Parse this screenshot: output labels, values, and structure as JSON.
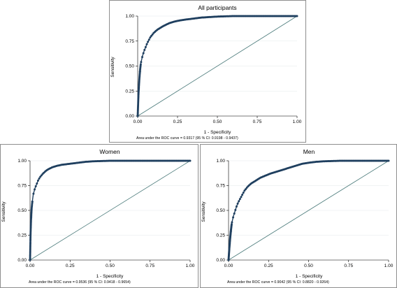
{
  "charts": [
    {
      "id": "all",
      "title": "All participants",
      "xlabel": "1 - Specificity",
      "ylabel": "Sensitivity",
      "note": "Area under the ROC curve = 0.9317 (95 % CI: 0.9198 - 0.9437)"
    },
    {
      "id": "women",
      "title": "Women",
      "xlabel": "1 - Specificity",
      "ylabel": "Sensitivity",
      "note": "Area under the ROC curve = 0.9536 (95 % CI: 0.9418 - 0.9654)"
    },
    {
      "id": "men",
      "title": "Men",
      "xlabel": "1 - Specificity",
      "ylabel": "Sensitivity",
      "note": "Area under the ROC curve = 0.9042 (95 % CI: 0.8820 - 0.9264)"
    }
  ],
  "chart_data": [
    {
      "type": "line",
      "title": "All participants",
      "xlabel": "1 - Specificity",
      "ylabel": "Sensitivity",
      "xlim": [
        0,
        1
      ],
      "ylim": [
        0,
        1
      ],
      "xticks": [
        "0.00",
        "0.25",
        "0.50",
        "0.75",
        "1.00"
      ],
      "yticks": [
        "0.00",
        "0.25",
        "0.50",
        "0.75",
        "1.00"
      ],
      "grid": true,
      "reference_line": [
        [
          0,
          0
        ],
        [
          1,
          1
        ]
      ],
      "series": [
        {
          "x": [
            0,
            0.005,
            0.01,
            0.015,
            0.02,
            0.03,
            0.04,
            0.05,
            0.06,
            0.07,
            0.08,
            0.1,
            0.12,
            0.14,
            0.16,
            0.18,
            0.2,
            0.23,
            0.26,
            0.3,
            0.35,
            0.4,
            0.45,
            0.5,
            0.6,
            0.7,
            0.8,
            0.9,
            1.0
          ],
          "y": [
            0,
            0.22,
            0.36,
            0.46,
            0.53,
            0.6,
            0.65,
            0.69,
            0.73,
            0.76,
            0.79,
            0.83,
            0.86,
            0.88,
            0.9,
            0.915,
            0.93,
            0.945,
            0.955,
            0.965,
            0.975,
            0.985,
            0.99,
            0.995,
            1.0,
            1.0,
            1.0,
            1.0,
            1.0
          ]
        }
      ],
      "auc_note": "Area under the ROC curve = 0.9317 (95 % CI: 0.9198 - 0.9437)",
      "colors": {
        "curve": "#1f3f5f",
        "reference": "#4a7a7a",
        "grid": "#e3e8ea"
      }
    },
    {
      "type": "line",
      "title": "Women",
      "xlabel": "1 - Specificity",
      "ylabel": "Sensitivity",
      "xlim": [
        0,
        1
      ],
      "ylim": [
        0,
        1
      ],
      "xticks": [
        "0.00",
        "0.25",
        "0.50",
        "0.75",
        "1.00"
      ],
      "yticks": [
        "0.00",
        "0.25",
        "0.50",
        "0.75",
        "1.00"
      ],
      "grid": true,
      "reference_line": [
        [
          0,
          0
        ],
        [
          1,
          1
        ]
      ],
      "series": [
        {
          "x": [
            0,
            0.003,
            0.006,
            0.01,
            0.015,
            0.02,
            0.03,
            0.04,
            0.05,
            0.06,
            0.07,
            0.08,
            0.1,
            0.12,
            0.14,
            0.17,
            0.2,
            0.25,
            0.3,
            0.35,
            0.4,
            0.5,
            0.6,
            0.7,
            0.8,
            0.9,
            1.0
          ],
          "y": [
            0,
            0.25,
            0.4,
            0.52,
            0.6,
            0.66,
            0.72,
            0.76,
            0.8,
            0.83,
            0.85,
            0.87,
            0.9,
            0.92,
            0.935,
            0.95,
            0.96,
            0.97,
            0.98,
            0.99,
            0.995,
            1.0,
            1.0,
            1.0,
            1.0,
            1.0,
            1.0
          ]
        }
      ],
      "auc_note": "Area under the ROC curve = 0.9536 (95 % CI: 0.9418 - 0.9654)",
      "colors": {
        "curve": "#1f3f5f",
        "reference": "#4a7a7a",
        "grid": "#e3e8ea"
      }
    },
    {
      "type": "line",
      "title": "Men",
      "xlabel": "1 - Specificity",
      "ylabel": "Sensitivity",
      "xlim": [
        0,
        1
      ],
      "ylim": [
        0,
        1
      ],
      "xticks": [
        "0.00",
        "0.25",
        "0.50",
        "0.75",
        "1.00"
      ],
      "yticks": [
        "0.00",
        "0.25",
        "0.50",
        "0.75",
        "1.00"
      ],
      "grid": true,
      "reference_line": [
        [
          0,
          0
        ],
        [
          1,
          1
        ]
      ],
      "series": [
        {
          "x": [
            0,
            0.005,
            0.01,
            0.015,
            0.02,
            0.03,
            0.04,
            0.05,
            0.06,
            0.08,
            0.1,
            0.12,
            0.14,
            0.16,
            0.18,
            0.2,
            0.23,
            0.26,
            0.3,
            0.34,
            0.38,
            0.42,
            0.46,
            0.5,
            0.55,
            0.6,
            0.7,
            0.8,
            0.9,
            1.0
          ],
          "y": [
            0,
            0.12,
            0.22,
            0.3,
            0.37,
            0.44,
            0.49,
            0.54,
            0.58,
            0.64,
            0.7,
            0.74,
            0.77,
            0.79,
            0.81,
            0.83,
            0.85,
            0.87,
            0.89,
            0.91,
            0.93,
            0.95,
            0.97,
            0.98,
            0.99,
            0.995,
            1.0,
            1.0,
            1.0,
            1.0
          ]
        }
      ],
      "auc_note": "Area under the ROC curve = 0.9042 (95 % CI: 0.8820 - 0.9264)",
      "colors": {
        "curve": "#1f3f5f",
        "reference": "#4a7a7a",
        "grid": "#e3e8ea"
      }
    }
  ]
}
